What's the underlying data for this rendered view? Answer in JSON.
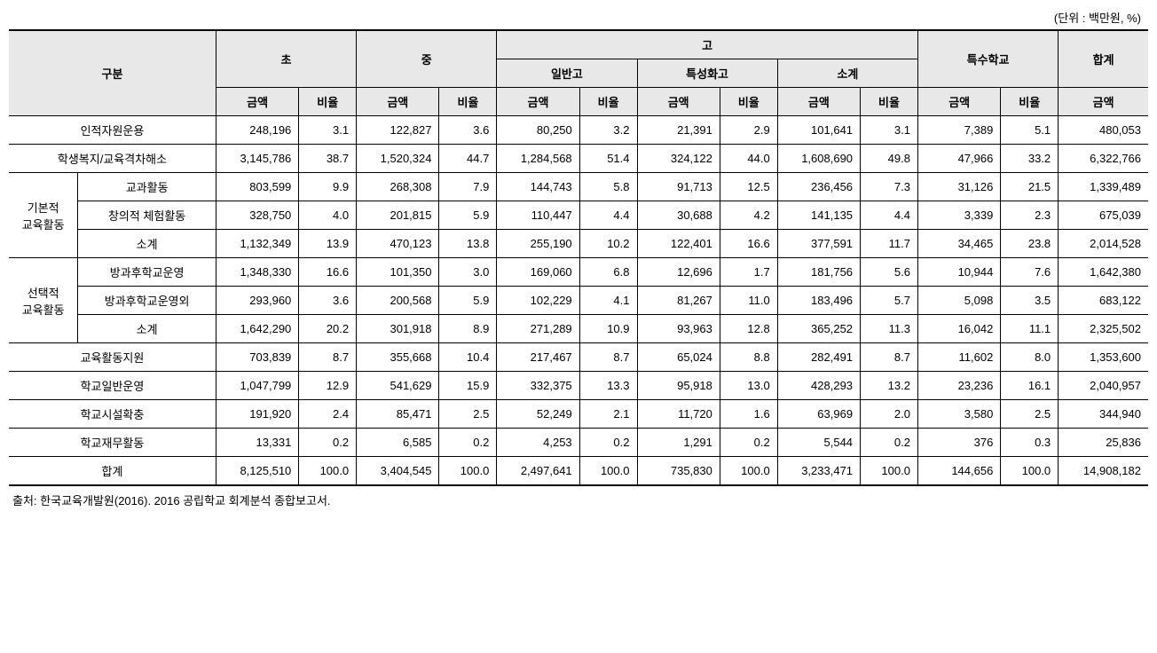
{
  "unit_label": "(단위 : 백만원, %)",
  "source": "출처: 한국교육개발원(2016). 2016 공립학교 회계분석 종합보고서.",
  "headers": {
    "category": "구분",
    "elem": "초",
    "middle": "중",
    "high": "고",
    "general_high": "일반고",
    "special_high": "특성화고",
    "subtotal_high": "소계",
    "special_school": "특수학교",
    "total": "합계",
    "amount": "금액",
    "ratio": "비율"
  },
  "rows": {
    "r0": {
      "label": "인적자원운용",
      "elem_amt": "248,196",
      "elem_pct": "3.1",
      "mid_amt": "122,827",
      "mid_pct": "3.6",
      "gen_amt": "80,250",
      "gen_pct": "3.2",
      "spe_amt": "21,391",
      "spe_pct": "2.9",
      "sub_amt": "101,641",
      "sub_pct": "3.1",
      "sch_amt": "7,389",
      "sch_pct": "5.1",
      "tot_amt": "480,053"
    },
    "r1": {
      "label": "학생복지/교육격차해소",
      "elem_amt": "3,145,786",
      "elem_pct": "38.7",
      "mid_amt": "1,520,324",
      "mid_pct": "44.7",
      "gen_amt": "1,284,568",
      "gen_pct": "51.4",
      "spe_amt": "324,122",
      "spe_pct": "44.0",
      "sub_amt": "1,608,690",
      "sub_pct": "49.8",
      "sch_amt": "47,966",
      "sch_pct": "33.2",
      "tot_amt": "6,322,766"
    },
    "g1": {
      "group_label": "기본적\n교육활동",
      "r2": {
        "label": "교과활동",
        "elem_amt": "803,599",
        "elem_pct": "9.9",
        "mid_amt": "268,308",
        "mid_pct": "7.9",
        "gen_amt": "144,743",
        "gen_pct": "5.8",
        "spe_amt": "91,713",
        "spe_pct": "12.5",
        "sub_amt": "236,456",
        "sub_pct": "7.3",
        "sch_amt": "31,126",
        "sch_pct": "21.5",
        "tot_amt": "1,339,489"
      },
      "r3": {
        "label": "창의적 체험활동",
        "elem_amt": "328,750",
        "elem_pct": "4.0",
        "mid_amt": "201,815",
        "mid_pct": "5.9",
        "gen_amt": "110,447",
        "gen_pct": "4.4",
        "spe_amt": "30,688",
        "spe_pct": "4.2",
        "sub_amt": "141,135",
        "sub_pct": "4.4",
        "sch_amt": "3,339",
        "sch_pct": "2.3",
        "tot_amt": "675,039"
      },
      "r4": {
        "label": "소계",
        "elem_amt": "1,132,349",
        "elem_pct": "13.9",
        "mid_amt": "470,123",
        "mid_pct": "13.8",
        "gen_amt": "255,190",
        "gen_pct": "10.2",
        "spe_amt": "122,401",
        "spe_pct": "16.6",
        "sub_amt": "377,591",
        "sub_pct": "11.7",
        "sch_amt": "34,465",
        "sch_pct": "23.8",
        "tot_amt": "2,014,528"
      }
    },
    "g2": {
      "group_label": "선택적\n교육활동",
      "r5": {
        "label": "방과후학교운영",
        "elem_amt": "1,348,330",
        "elem_pct": "16.6",
        "mid_amt": "101,350",
        "mid_pct": "3.0",
        "gen_amt": "169,060",
        "gen_pct": "6.8",
        "spe_amt": "12,696",
        "spe_pct": "1.7",
        "sub_amt": "181,756",
        "sub_pct": "5.6",
        "sch_amt": "10,944",
        "sch_pct": "7.6",
        "tot_amt": "1,642,380"
      },
      "r6": {
        "label": "방과후학교운영외",
        "elem_amt": "293,960",
        "elem_pct": "3.6",
        "mid_amt": "200,568",
        "mid_pct": "5.9",
        "gen_amt": "102,229",
        "gen_pct": "4.1",
        "spe_amt": "81,267",
        "spe_pct": "11.0",
        "sub_amt": "183,496",
        "sub_pct": "5.7",
        "sch_amt": "5,098",
        "sch_pct": "3.5",
        "tot_amt": "683,122"
      },
      "r7": {
        "label": "소계",
        "elem_amt": "1,642,290",
        "elem_pct": "20.2",
        "mid_amt": "301,918",
        "mid_pct": "8.9",
        "gen_amt": "271,289",
        "gen_pct": "10.9",
        "spe_amt": "93,963",
        "spe_pct": "12.8",
        "sub_amt": "365,252",
        "sub_pct": "11.3",
        "sch_amt": "16,042",
        "sch_pct": "11.1",
        "tot_amt": "2,325,502"
      }
    },
    "r8": {
      "label": "교육활동지원",
      "elem_amt": "703,839",
      "elem_pct": "8.7",
      "mid_amt": "355,668",
      "mid_pct": "10.4",
      "gen_amt": "217,467",
      "gen_pct": "8.7",
      "spe_amt": "65,024",
      "spe_pct": "8.8",
      "sub_amt": "282,491",
      "sub_pct": "8.7",
      "sch_amt": "11,602",
      "sch_pct": "8.0",
      "tot_amt": "1,353,600"
    },
    "r9": {
      "label": "학교일반운영",
      "elem_amt": "1,047,799",
      "elem_pct": "12.9",
      "mid_amt": "541,629",
      "mid_pct": "15.9",
      "gen_amt": "332,375",
      "gen_pct": "13.3",
      "spe_amt": "95,918",
      "spe_pct": "13.0",
      "sub_amt": "428,293",
      "sub_pct": "13.2",
      "sch_amt": "23,236",
      "sch_pct": "16.1",
      "tot_amt": "2,040,957"
    },
    "r10": {
      "label": "학교시설확충",
      "elem_amt": "191,920",
      "elem_pct": "2.4",
      "mid_amt": "85,471",
      "mid_pct": "2.5",
      "gen_amt": "52,249",
      "gen_pct": "2.1",
      "spe_amt": "11,720",
      "spe_pct": "1.6",
      "sub_amt": "63,969",
      "sub_pct": "2.0",
      "sch_amt": "3,580",
      "sch_pct": "2.5",
      "tot_amt": "344,940"
    },
    "r11": {
      "label": "학교재무활동",
      "elem_amt": "13,331",
      "elem_pct": "0.2",
      "mid_amt": "6,585",
      "mid_pct": "0.2",
      "gen_amt": "4,253",
      "gen_pct": "0.2",
      "spe_amt": "1,291",
      "spe_pct": "0.2",
      "sub_amt": "5,544",
      "sub_pct": "0.2",
      "sch_amt": "376",
      "sch_pct": "0.3",
      "tot_amt": "25,836"
    },
    "r12": {
      "label": "합계",
      "elem_amt": "8,125,510",
      "elem_pct": "100.0",
      "mid_amt": "3,404,545",
      "mid_pct": "100.0",
      "gen_amt": "2,497,641",
      "gen_pct": "100.0",
      "spe_amt": "735,830",
      "spe_pct": "100.0",
      "sub_amt": "3,233,471",
      "sub_pct": "100.0",
      "sch_amt": "144,656",
      "sch_pct": "100.0",
      "tot_amt": "14,908,182"
    }
  }
}
